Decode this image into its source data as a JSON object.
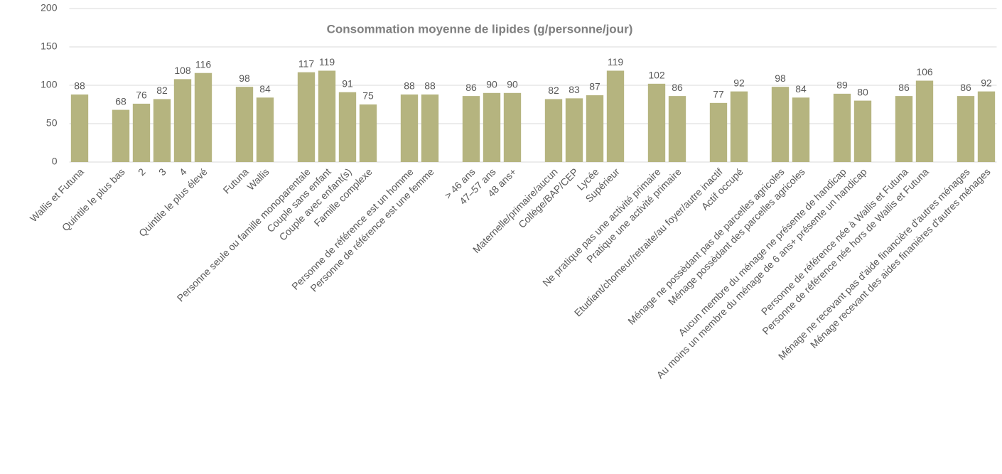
{
  "chart_data": {
    "type": "bar",
    "title": "Consommation moyenne de lipides (g/personne/jour)",
    "categories": [
      "Wallis et Futuna",
      null,
      "Quintile le plus bas",
      "2",
      "3",
      "4",
      "Quintile le plus élevé",
      null,
      "Futuna",
      "Wallis",
      null,
      "Personne seule ou famille monoparentale",
      "Couple sans enfant",
      "Couple avec enfant(s)",
      "Famille complexe",
      null,
      "Personne de référence est un homme",
      "Personne de référence est une femme",
      null,
      "> 46 ans",
      "47–57 ans",
      "48 ans+",
      null,
      "Maternelle/primaire/aucun",
      "Collège/BAP/CEP",
      "Lycée",
      "Supérieur",
      null,
      "Ne pratique pas une activité primaire",
      "Pratique une activité primaire",
      null,
      "Etudiant/chomeur/retraite/au foyer/autre inactif",
      "Actif occupé",
      null,
      "Ménage ne possèdant pas de parcelles agricoles",
      "Ménage possèdant des parcelles agricoles",
      null,
      "Aucun membre du ménage ne présente de handicap",
      "Au moins un membre du ménage de 6 ans+ présente un handicap",
      null,
      "Personne de référence née à Wallis et Futuna",
      "Personne de référence née hors de Wallis et Futuna",
      null,
      "Ménage ne recevant pas d'aide financière d'autres ménages",
      "Ménage recevant des aides finanières d'autres ménages"
    ],
    "values": [
      88,
      null,
      68,
      76,
      82,
      108,
      116,
      null,
      98,
      84,
      null,
      117,
      119,
      91,
      75,
      null,
      88,
      88,
      null,
      86,
      90,
      90,
      null,
      82,
      83,
      87,
      119,
      null,
      102,
      86,
      null,
      77,
      92,
      null,
      98,
      84,
      null,
      89,
      80,
      null,
      86,
      106,
      null,
      86,
      92
    ],
    "color": "#b5b47f",
    "ylim": [
      0,
      200
    ],
    "yticks": [
      0,
      50,
      100,
      150,
      200
    ],
    "grid": true
  }
}
